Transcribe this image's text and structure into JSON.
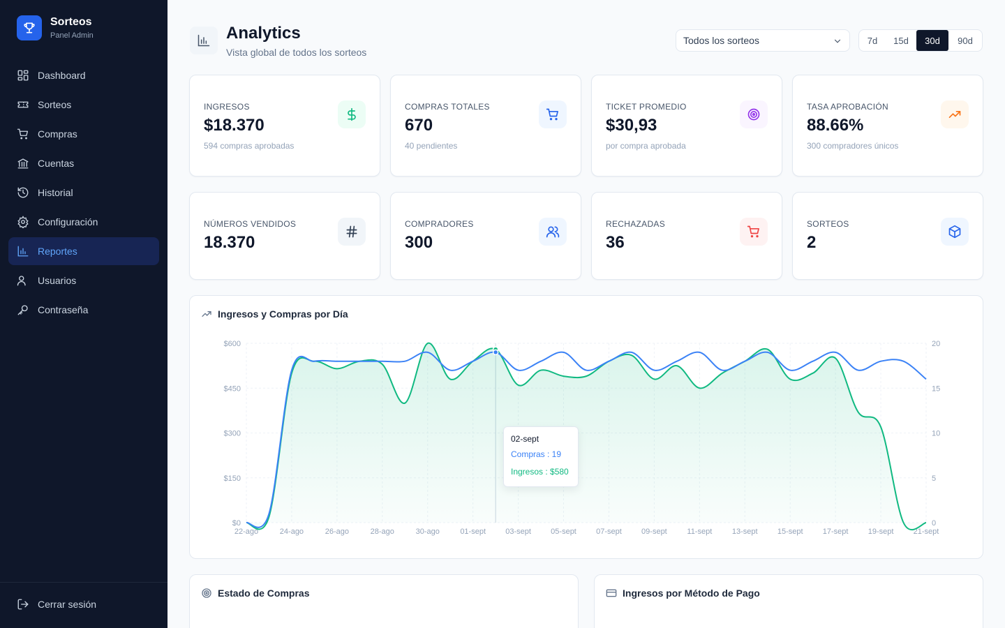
{
  "brand": {
    "title": "Sorteos",
    "subtitle": "Panel Admin"
  },
  "nav": [
    {
      "label": "Dashboard",
      "icon": "dashboard-icon"
    },
    {
      "label": "Sorteos",
      "icon": "ticket-icon"
    },
    {
      "label": "Compras",
      "icon": "cart-icon"
    },
    {
      "label": "Cuentas",
      "icon": "bank-icon"
    },
    {
      "label": "Historial",
      "icon": "history-icon"
    },
    {
      "label": "Configuración",
      "icon": "gear-icon"
    },
    {
      "label": "Reportes",
      "icon": "bar-chart-icon",
      "active": true
    },
    {
      "label": "Usuarios",
      "icon": "users-icon"
    },
    {
      "label": "Contraseña",
      "icon": "key-icon"
    }
  ],
  "logout_label": "Cerrar sesión",
  "header": {
    "title": "Analytics",
    "subtitle": "Vista global de todos los sorteos",
    "select_value": "Todos los sorteos",
    "ranges": [
      "7d",
      "15d",
      "30d",
      "90d"
    ],
    "active_range": "30d"
  },
  "cards": [
    {
      "label": "INGRESOS",
      "value": "$18.370",
      "sub": "594 compras aprobadas",
      "icon": "dollar-icon",
      "color": "#10b981",
      "bg": "#ecfdf5"
    },
    {
      "label": "COMPRAS TOTALES",
      "value": "670",
      "sub": "40 pendientes",
      "icon": "cart-icon",
      "color": "#2563eb",
      "bg": "#eff6ff"
    },
    {
      "label": "TICKET PROMEDIO",
      "value": "$30,93",
      "sub": "por compra aprobada",
      "icon": "target-icon",
      "color": "#9333ea",
      "bg": "#faf5ff"
    },
    {
      "label": "TASA APROBACIÓN",
      "value": "88.66%",
      "sub": "300 compradores únicos",
      "icon": "trending-up-icon",
      "color": "#f97316",
      "bg": "#fff7ed"
    },
    {
      "label": "NÚMEROS VENDIDOS",
      "value": "18.370",
      "sub": "",
      "icon": "hash-icon",
      "color": "#334155",
      "bg": "#f1f5f9"
    },
    {
      "label": "COMPRADORES",
      "value": "300",
      "sub": "",
      "icon": "users-icon",
      "color": "#2563eb",
      "bg": "#eff6ff"
    },
    {
      "label": "RECHAZADAS",
      "value": "36",
      "sub": "",
      "icon": "cart-icon",
      "color": "#ef4444",
      "bg": "#fef2f2"
    },
    {
      "label": "SORTEOS",
      "value": "2",
      "sub": "",
      "icon": "box-icon",
      "color": "#2563eb",
      "bg": "#eff6ff"
    }
  ],
  "chart_panel_title": "Ingresos y Compras por Día",
  "chart_data": {
    "type": "line",
    "title": "Ingresos y Compras por Día",
    "x": [
      "22-ago",
      "23-ago",
      "24-ago",
      "25-ago",
      "26-ago",
      "27-ago",
      "28-ago",
      "29-ago",
      "30-ago",
      "31-ago",
      "01-sept",
      "02-sept",
      "03-sept",
      "04-sept",
      "05-sept",
      "06-sept",
      "07-sept",
      "08-sept",
      "09-sept",
      "10-sept",
      "11-sept",
      "12-sept",
      "13-sept",
      "14-sept",
      "15-sept",
      "16-sept",
      "17-sept",
      "18-sept",
      "19-sept",
      "20-sept",
      "21-sept"
    ],
    "x_tick_labels": [
      "22-ago",
      "24-ago",
      "26-ago",
      "28-ago",
      "30-ago",
      "01-sept",
      "03-sept",
      "05-sept",
      "07-sept",
      "09-sept",
      "11-sept",
      "13-sept",
      "15-sept",
      "17-sept",
      "19-sept",
      "21-sept"
    ],
    "y_left": {
      "ticks": [
        "$0",
        "$150",
        "$300",
        "$450",
        "$600"
      ],
      "range": [
        0,
        600
      ]
    },
    "y_right": {
      "ticks": [
        "0",
        "5",
        "10",
        "15",
        "20"
      ],
      "range": [
        0,
        20
      ]
    },
    "series": [
      {
        "name": "Ingresos",
        "axis": "left",
        "color": "#10b981",
        "values": [
          0,
          20,
          500,
          540,
          515,
          540,
          530,
          400,
          600,
          480,
          540,
          580,
          460,
          510,
          490,
          490,
          540,
          560,
          480,
          525,
          450,
          500,
          540,
          580,
          480,
          500,
          550,
          370,
          320,
          0,
          0
        ]
      },
      {
        "name": "Compras",
        "axis": "right",
        "color": "#3b82f6",
        "values": [
          0,
          1,
          17,
          18,
          18,
          18,
          18,
          18,
          19,
          17,
          18,
          19,
          17,
          18,
          19,
          17,
          18,
          19,
          17,
          18,
          19,
          17,
          18,
          19,
          17,
          18,
          19,
          17,
          18,
          18,
          16
        ]
      }
    ],
    "tooltip": {
      "date": "02-sept",
      "compras_label": "Compras : 19",
      "ingresos_label": "Ingresos : $580"
    },
    "grid": true
  },
  "bottom_panels": [
    {
      "title": "Estado de Compras",
      "icon": "target-icon"
    },
    {
      "title": "Ingresos por Método de Pago",
      "icon": "credit-card-icon"
    }
  ]
}
